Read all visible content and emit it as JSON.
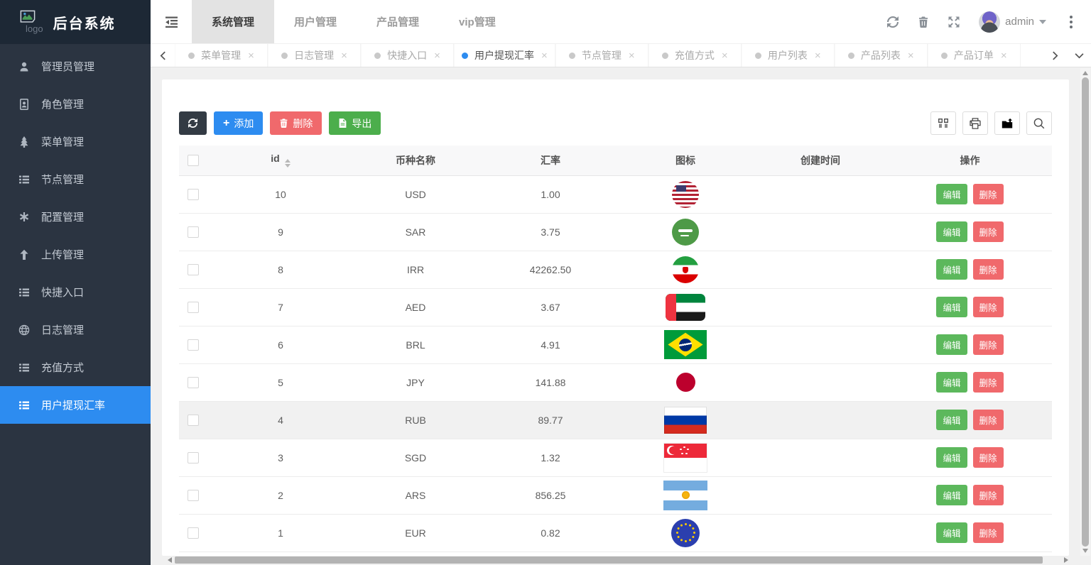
{
  "app": {
    "logo_alt": "logo",
    "title": "后台系统"
  },
  "colors": {
    "primary": "#2d8cf0",
    "success_green": "#5cb85c",
    "export_green": "#4cae4c",
    "danger_red": "#f0696c",
    "dark_button": "#333b44",
    "sidebar_bg": "#2b3441",
    "sidebar_logo_bg": "#1d2835"
  },
  "sidebar": {
    "active_index": 9,
    "items": [
      {
        "name": "admin",
        "icon": "user",
        "label": "管理员管理"
      },
      {
        "name": "roles",
        "icon": "id-card",
        "label": "角色管理"
      },
      {
        "name": "menus",
        "icon": "tree",
        "label": "菜单管理"
      },
      {
        "name": "nodes",
        "icon": "list",
        "label": "节点管理"
      },
      {
        "name": "config",
        "icon": "asterisk",
        "label": "配置管理"
      },
      {
        "name": "upload",
        "icon": "arrow-up",
        "label": "上传管理"
      },
      {
        "name": "quick-entry",
        "icon": "list",
        "label": "快捷入口"
      },
      {
        "name": "logs",
        "icon": "globe",
        "label": "日志管理"
      },
      {
        "name": "recharge",
        "icon": "list",
        "label": "充值方式"
      },
      {
        "name": "withdraw-rate",
        "icon": "list",
        "label": "用户提现汇率"
      }
    ]
  },
  "topnav": {
    "active_index": 0,
    "tabs": [
      {
        "name": "system",
        "label": "系统管理"
      },
      {
        "name": "user",
        "label": "用户管理"
      },
      {
        "name": "product",
        "label": "产品管理"
      },
      {
        "name": "vip",
        "label": "vip管理"
      }
    ],
    "username": "admin"
  },
  "tabstrip": {
    "active_index": 3,
    "tabs": [
      {
        "name": "menus",
        "label": "菜单管理"
      },
      {
        "name": "logs",
        "label": "日志管理"
      },
      {
        "name": "quick-entry",
        "label": "快捷入口"
      },
      {
        "name": "withdraw-rate",
        "label": "用户提现汇率"
      },
      {
        "name": "nodes",
        "label": "节点管理"
      },
      {
        "name": "recharge",
        "label": "充值方式"
      },
      {
        "name": "user-list",
        "label": "用户列表"
      },
      {
        "name": "product-list",
        "label": "产品列表"
      },
      {
        "name": "product-orders",
        "label": "产品订单"
      }
    ],
    "close_glyph": "×"
  },
  "toolbar": {
    "add_label": "添加",
    "delete_label": "删除",
    "export_label": "导出"
  },
  "table": {
    "headers": {
      "id": "id",
      "currency": "币种名称",
      "rate": "汇率",
      "icon": "图标",
      "created": "创建时间",
      "actions": "操作"
    },
    "edit_label": "编辑",
    "delete_label": "删除",
    "rows": [
      {
        "id": "10",
        "code": "USD",
        "rate": "1.00",
        "flag": "usd",
        "created_at": "",
        "highlight": false
      },
      {
        "id": "9",
        "code": "SAR",
        "rate": "3.75",
        "flag": "sar",
        "created_at": "",
        "highlight": false
      },
      {
        "id": "8",
        "code": "IRR",
        "rate": "42262.50",
        "flag": "irr",
        "created_at": "",
        "highlight": false
      },
      {
        "id": "7",
        "code": "AED",
        "rate": "3.67",
        "flag": "aed",
        "created_at": "",
        "highlight": false
      },
      {
        "id": "6",
        "code": "BRL",
        "rate": "4.91",
        "flag": "brl",
        "created_at": "",
        "highlight": false
      },
      {
        "id": "5",
        "code": "JPY",
        "rate": "141.88",
        "flag": "jpy",
        "created_at": "",
        "highlight": false
      },
      {
        "id": "4",
        "code": "RUB",
        "rate": "89.77",
        "flag": "rub",
        "created_at": "",
        "highlight": true
      },
      {
        "id": "3",
        "code": "SGD",
        "rate": "1.32",
        "flag": "sgd",
        "created_at": "",
        "highlight": false
      },
      {
        "id": "2",
        "code": "ARS",
        "rate": "856.25",
        "flag": "ars",
        "created_at": "",
        "highlight": false
      },
      {
        "id": "1",
        "code": "EUR",
        "rate": "0.82",
        "flag": "eur",
        "created_at": "",
        "highlight": false
      }
    ]
  }
}
